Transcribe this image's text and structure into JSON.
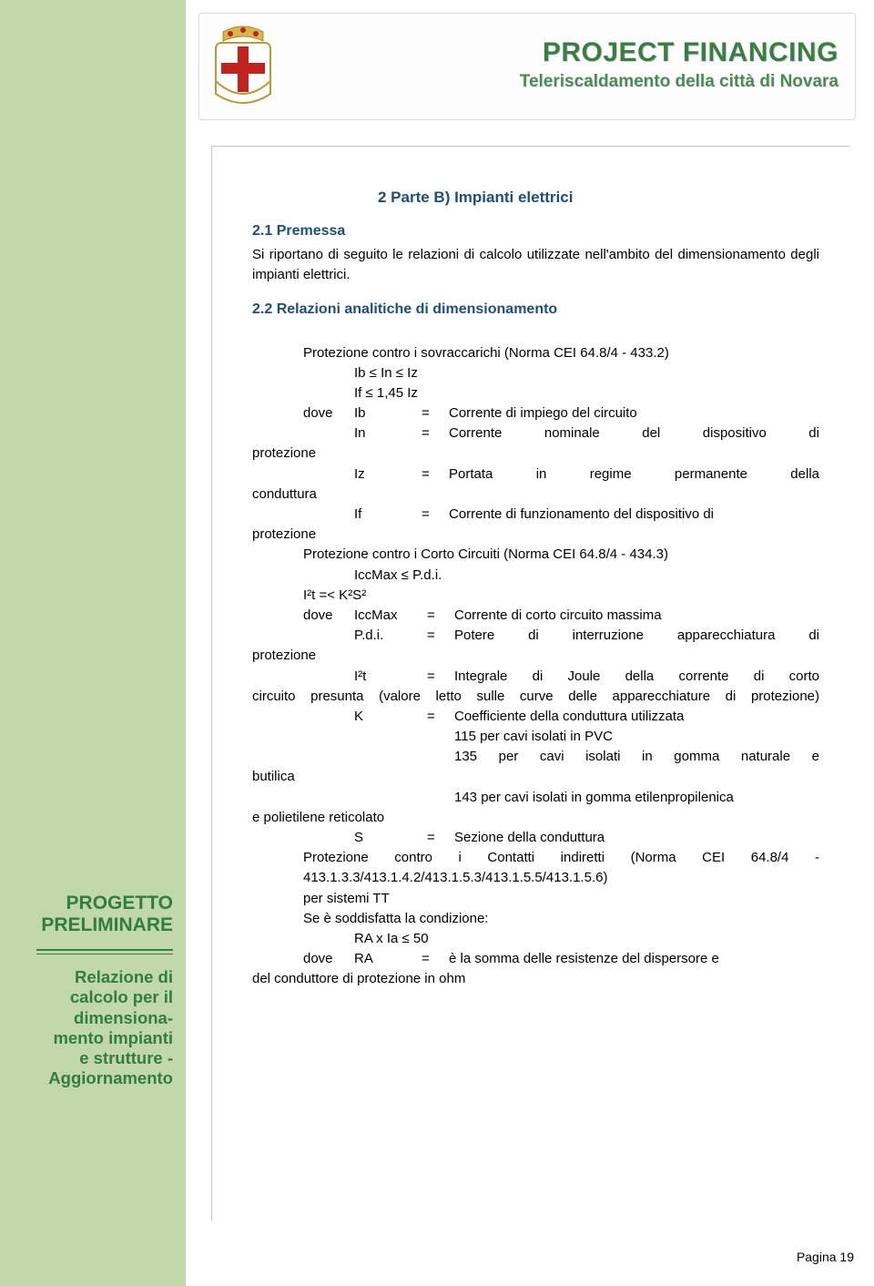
{
  "colors": {
    "sidebar_bg": "#c1d8ab",
    "sidebar_text": "#347c42",
    "header_title": "#3a7e46",
    "header_sub": "#4e8a58",
    "section_heading": "#1f4e79",
    "frame_border": "#c7c7c7"
  },
  "header": {
    "title": "PROJECT FINANCING",
    "subtitle": "Teleriscaldamento della città di Novara"
  },
  "sidebar": {
    "title_line1": "PROGETTO",
    "title_line2": "PRELIMINARE",
    "sub_line1": "Relazione di",
    "sub_line2": "calcolo per il",
    "sub_line3": "dimensiona-",
    "sub_line4": "mento impianti",
    "sub_line5": "e strutture -",
    "sub_line6": "Aggiornamento"
  },
  "section": {
    "num_title": "2    Parte B) Impianti elettrici",
    "premessa_title": "2.1   Premessa",
    "premessa_body": "Si riportano di seguito le relazioni di calcolo utilizzate nell'ambito del dimensionamento degli impianti elettrici.",
    "relazioni_title": "2.2   Relazioni analitiche di dimensionamento"
  },
  "norms": {
    "n1_title": "Protezione contro i sovraccarichi (Norma CEI 64.8/4 - 433.2)",
    "n1_rel1": "Ib ≤ In ≤ Iz",
    "n1_rel2": "If ≤ 1,45 Iz",
    "defs": [
      {
        "lead": "dove",
        "sym": "Ib",
        "eq": "=",
        "txt": "Corrente di impiego del circuito"
      },
      {
        "lead": "",
        "sym": "In",
        "eq": "=",
        "txt": "Corrente nominale del dispositivo di",
        "just": true
      },
      {
        "cont": "protezione"
      },
      {
        "lead": "",
        "sym": "Iz",
        "eq": "=",
        "txt": "Portata in regime permanente della",
        "just": true
      },
      {
        "cont": "conduttura"
      },
      {
        "lead": "",
        "sym": "If",
        "eq": "=",
        "txt": "Corrente di funzionamento del dispositivo di"
      },
      {
        "cont": "protezione"
      }
    ],
    "n2_title": "Protezione contro i Corto Circuiti (Norma CEI 64.8/4 - 434.3)",
    "n2_rel1": "IccMax ≤ P.d.i.",
    "n2_rel2": "I²t =< K²S²",
    "defs2": [
      {
        "lead": "dove",
        "sym": "IccMax",
        "eq": "=",
        "txt": "Corrente di corto circuito massima",
        "symw": "80"
      },
      {
        "lead": "",
        "sym": "P.d.i.",
        "eq": "=",
        "txt": "Potere di interruzione apparecchiatura di",
        "just": true,
        "symw": "80"
      },
      {
        "cont": "protezione"
      },
      {
        "lead": "",
        "sym": "I²t",
        "eq": "=",
        "txt": "Integrale di Joule della corrente di corto",
        "just": true,
        "symw": "80"
      }
    ],
    "i2t_cont": "circuito presunta (valore letto sulle curve delle apparecchiature di protezione)",
    "defs3": [
      {
        "lead": "",
        "sym": "K",
        "eq": "=",
        "txt": "Coefficiente della conduttura utilizzata",
        "symw": "80"
      }
    ],
    "k_lines": [
      "115 per cavi isolati in PVC",
      "135 per cavi isolati in gomma naturale e"
    ],
    "k_cont1": "butilica",
    "k_line3": "143 per cavi isolati in gomma etilenpropilenica",
    "k_cont2": "e polietilene reticolato",
    "defs4": [
      {
        "lead": "",
        "sym": "S",
        "eq": "=",
        "txt": "Sezione della conduttura",
        "symw": "80"
      }
    ],
    "n3_title": "Protezione contro i Contatti indiretti (Norma CEI 64.8/4 - 413.1.3.3/413.1.4.2/413.1.5.3/413.1.5.5/413.1.5.6)",
    "tt": "per sistemi TT",
    "cond": "Se è soddisfatta la condizione:",
    "ra": "RA x Ia ≤ 50",
    "defs5": [
      {
        "lead": "dove",
        "sym": "RA",
        "eq": "=",
        "txt": "è la somma delle resistenze del dispersore e"
      }
    ],
    "ra_cont": "del conduttore di protezione in ohm"
  },
  "footer": {
    "page": "Pagina 19"
  }
}
